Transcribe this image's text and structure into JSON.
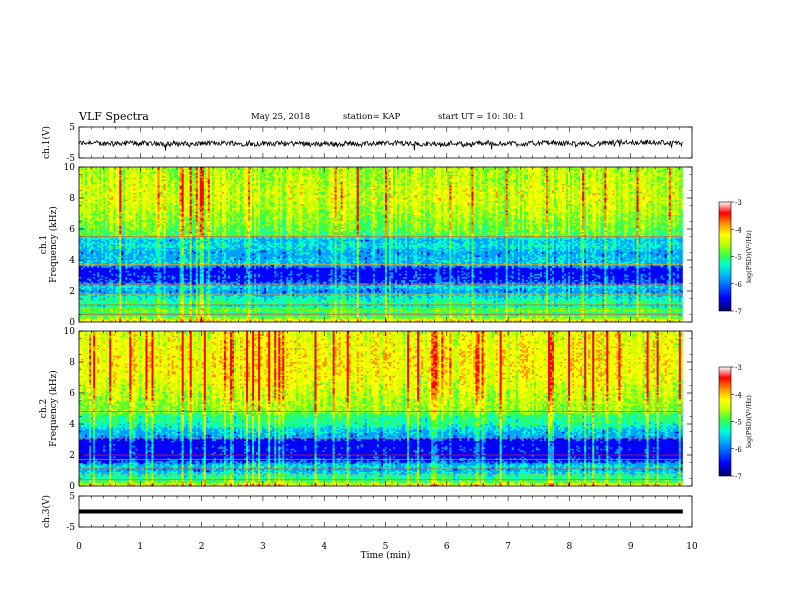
{
  "header": {
    "title": "VLF Spectra",
    "date": "May 25, 2018",
    "station": "station= KAP",
    "start_ut": "start  UT  =   10: 30: 1"
  },
  "chart_data": [
    {
      "panel": "ch1-waveform",
      "type": "line",
      "ylabel": "ch.1(V)",
      "ylim": [
        -5,
        5
      ],
      "yticks": [
        "5",
        "-5"
      ],
      "xlim": [
        0,
        10
      ],
      "x_end": 9.85,
      "mean": -0.3,
      "amplitude": 1.6
    },
    {
      "panel": "ch1-spectrogram",
      "type": "heatmap",
      "ylabel_channel": "ch.1",
      "ylabel": "Frequency (kHz)",
      "ylim": [
        0,
        10
      ],
      "yticks": [
        "0",
        "2",
        "4",
        "6",
        "8",
        "10"
      ],
      "xlim": [
        0,
        10
      ],
      "x_end": 9.85,
      "colorbar": {
        "label": "log(PSD)(V²/Hz)",
        "range": [
          -7,
          -3
        ],
        "ticks": [
          "-3",
          "-4",
          "-5",
          "-6",
          "-7"
        ]
      },
      "profile_log_psd": [
        [
          0.0,
          -3.8
        ],
        [
          0.3,
          -4.6
        ],
        [
          0.5,
          -5.0
        ],
        [
          0.8,
          -4.5
        ],
        [
          1.0,
          -5.2
        ],
        [
          1.2,
          -4.9
        ],
        [
          1.5,
          -5.1
        ],
        [
          2.0,
          -5.6
        ],
        [
          2.3,
          -5.2
        ],
        [
          2.6,
          -5.9
        ],
        [
          3.0,
          -6.0
        ],
        [
          3.4,
          -6.1
        ],
        [
          3.7,
          -5.3
        ],
        [
          4.0,
          -5.4
        ],
        [
          4.5,
          -5.5
        ],
        [
          4.9,
          -5.2
        ],
        [
          5.3,
          -5.4
        ],
        [
          5.6,
          -4.7
        ],
        [
          6.0,
          -4.6
        ],
        [
          7.0,
          -4.4
        ],
        [
          8.0,
          -4.2
        ],
        [
          9.0,
          -4.3
        ],
        [
          10.0,
          -4.4
        ]
      ],
      "harmonic_lines_khz": [
        0.5,
        0.8,
        1.1,
        1.8,
        2.4,
        3.7,
        5.5
      ]
    },
    {
      "panel": "ch2-spectrogram",
      "type": "heatmap",
      "ylabel_channel": "ch.2",
      "ylabel": "Frequency (kHz)",
      "ylim": [
        0,
        10
      ],
      "yticks": [
        "0",
        "2",
        "4",
        "6",
        "8",
        "10"
      ],
      "xlim": [
        0,
        10
      ],
      "x_end": 9.85,
      "colorbar": {
        "label": "log(PSD)(V²/Hz)",
        "range": [
          -7,
          -3
        ],
        "ticks": [
          "-3",
          "-4",
          "-5",
          "-6",
          "-7"
        ]
      },
      "profile_log_psd": [
        [
          0.0,
          -3.9
        ],
        [
          0.3,
          -4.8
        ],
        [
          0.6,
          -5.0
        ],
        [
          1.0,
          -5.5
        ],
        [
          1.3,
          -5.3
        ],
        [
          1.6,
          -5.9
        ],
        [
          2.0,
          -6.2
        ],
        [
          2.4,
          -6.0
        ],
        [
          2.8,
          -6.3
        ],
        [
          3.2,
          -5.5
        ],
        [
          3.6,
          -5.4
        ],
        [
          4.0,
          -5.0
        ],
        [
          4.5,
          -4.9
        ],
        [
          4.8,
          -4.5
        ],
        [
          5.5,
          -4.4
        ],
        [
          6.0,
          -4.3
        ],
        [
          7.0,
          -4.1
        ],
        [
          8.0,
          -4.0
        ],
        [
          9.0,
          -4.1
        ],
        [
          10.0,
          -4.2
        ]
      ],
      "harmonic_lines_khz": [
        0.4,
        0.7,
        1.1,
        1.7,
        2.0,
        3.1,
        4.8
      ]
    },
    {
      "panel": "ch3-waveform",
      "type": "line",
      "ylabel": "ch.3(V)",
      "ylim": [
        -5,
        5
      ],
      "yticks": [
        "5",
        "-5"
      ],
      "xlim": [
        0,
        10
      ],
      "x_end": 9.85,
      "mean": 0.0,
      "amplitude": 0.0
    }
  ],
  "x_axis": {
    "label": "Time (min)",
    "ticks": [
      "0",
      "1",
      "2",
      "3",
      "4",
      "5",
      "6",
      "7",
      "8",
      "9",
      "10"
    ]
  },
  "colors": {
    "colormap": [
      "#000080",
      "#0000ff",
      "#00a0ff",
      "#00ffcc",
      "#40ff40",
      "#c0ff00",
      "#ffff00",
      "#ff9000",
      "#ff0000",
      "#ffffff"
    ],
    "trace": "#000000"
  }
}
